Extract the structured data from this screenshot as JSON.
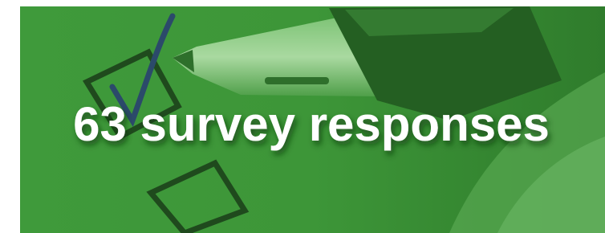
{
  "banner": {
    "headline": "63 survey responses"
  }
}
